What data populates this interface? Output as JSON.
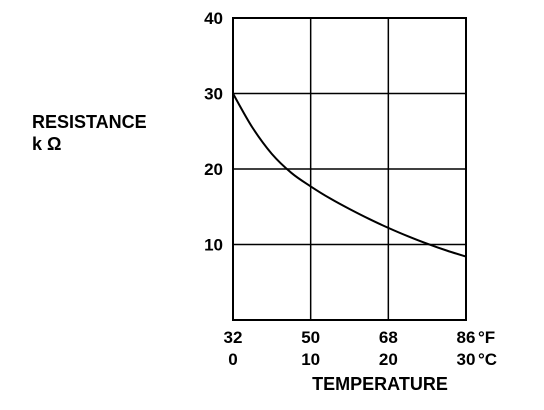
{
  "chart_data": {
    "type": "line",
    "title": "",
    "ylabel_line1": "RESISTANCE",
    "ylabel_line2": "k Ω",
    "xlabel": "TEMPERATURE",
    "x_unit_label": "°C",
    "x_unit_label_alt": "°F",
    "xlim": [
      0,
      30
    ],
    "ylim": [
      0,
      40
    ],
    "grid": true,
    "x_ticks_c": [
      "0",
      "10",
      "20",
      "30"
    ],
    "x_ticks_f": [
      "32",
      "50",
      "68",
      "86"
    ],
    "y_ticks": [
      "10",
      "20",
      "30",
      "40"
    ],
    "series": [
      {
        "x": [
          0,
          2.5,
          5,
          7.5,
          10,
          12.5,
          15,
          17.5,
          20,
          22.5,
          25,
          27.5,
          30
        ],
        "y": [
          30.0,
          25.5,
          22.0,
          19.5,
          17.7,
          16.1,
          14.7,
          13.4,
          12.2,
          11.1,
          10.1,
          9.2,
          8.4
        ]
      }
    ]
  }
}
